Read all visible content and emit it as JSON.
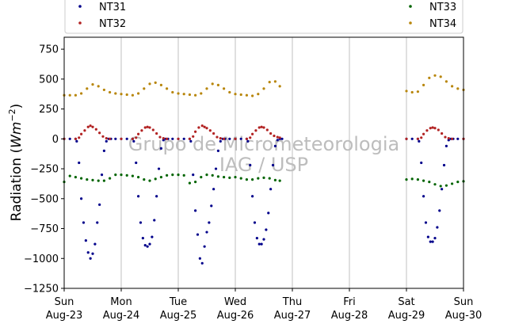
{
  "chart_data": {
    "type": "scatter",
    "title": "",
    "xlabel": "",
    "ylabel_main": "Radiation (",
    "ylabel_unit_base": "Wm",
    "ylabel_unit_exp": "−2",
    "ylabel_close": ")",
    "ylim": [
      -1250,
      850
    ],
    "xlim_days": [
      0,
      7
    ],
    "yticks": [
      {
        "v": 750,
        "label": "750"
      },
      {
        "v": 500,
        "label": "500"
      },
      {
        "v": 250,
        "label": "250"
      },
      {
        "v": 0,
        "label": "0"
      },
      {
        "v": -250,
        "label": "−250"
      },
      {
        "v": -500,
        "label": "−500"
      },
      {
        "v": -750,
        "label": "−750"
      },
      {
        "v": -1000,
        "label": "−1000"
      },
      {
        "v": -1250,
        "label": "−1250"
      }
    ],
    "xticks": [
      {
        "d": 0,
        "day": "Sun",
        "date": "Aug-23"
      },
      {
        "d": 1,
        "day": "Mon",
        "date": "Aug-24"
      },
      {
        "d": 2,
        "day": "Tue",
        "date": "Aug-25"
      },
      {
        "d": 3,
        "day": "Wed",
        "date": "Aug-26"
      },
      {
        "d": 4,
        "day": "Thu",
        "date": "Aug-27"
      },
      {
        "d": 5,
        "day": "Fri",
        "date": "Aug-28"
      },
      {
        "d": 6,
        "day": "Sat",
        "date": "Aug-29"
      },
      {
        "d": 7,
        "day": "Sun",
        "date": "Aug-30"
      }
    ],
    "grid": "vertical",
    "legend_placement": "top",
    "watermark": [
      "Grupo de Micrometeorologia",
      "IAG / USP"
    ],
    "series": [
      {
        "name": "NT31",
        "color": "#00008b",
        "x": [
          0.0,
          0.1,
          0.2,
          0.22,
          0.26,
          0.3,
          0.34,
          0.38,
          0.42,
          0.46,
          0.5,
          0.54,
          0.58,
          0.62,
          0.66,
          0.7,
          0.74,
          0.78,
          0.82,
          0.9,
          1.0,
          1.1,
          1.2,
          1.22,
          1.26,
          1.3,
          1.34,
          1.38,
          1.42,
          1.46,
          1.5,
          1.54,
          1.58,
          1.62,
          1.66,
          1.7,
          1.74,
          1.78,
          1.82,
          1.9,
          2.0,
          2.1,
          2.2,
          2.22,
          2.26,
          2.3,
          2.34,
          2.38,
          2.42,
          2.46,
          2.5,
          2.54,
          2.58,
          2.62,
          2.66,
          2.7,
          2.74,
          2.78,
          2.82,
          2.9,
          3.0,
          3.1,
          3.2,
          3.22,
          3.26,
          3.3,
          3.34,
          3.38,
          3.42,
          3.46,
          3.5,
          3.54,
          3.58,
          3.62,
          3.66,
          3.7,
          3.74,
          3.78,
          3.82,
          6.0,
          6.1,
          6.2,
          6.22,
          6.26,
          6.3,
          6.34,
          6.38,
          6.42,
          6.46,
          6.5,
          6.54,
          6.58,
          6.62,
          6.66,
          6.7,
          6.74,
          6.78,
          6.82,
          6.9,
          7.0
        ],
        "y": [
          0,
          0,
          0,
          -20,
          -200,
          -500,
          -700,
          -850,
          -950,
          -1000,
          -960,
          -880,
          -700,
          -550,
          -300,
          -100,
          -20,
          0,
          0,
          0,
          0,
          0,
          0,
          -20,
          -200,
          -480,
          -700,
          -830,
          -890,
          -900,
          -880,
          -820,
          -680,
          -480,
          -250,
          -80,
          -10,
          0,
          0,
          0,
          0,
          0,
          0,
          -20,
          -300,
          -600,
          -800,
          -1000,
          -1040,
          -900,
          -780,
          -700,
          -560,
          -420,
          -250,
          -100,
          -20,
          0,
          0,
          0,
          0,
          0,
          0,
          -20,
          -220,
          -480,
          -700,
          -830,
          -880,
          -880,
          -840,
          -760,
          -620,
          -420,
          -220,
          -60,
          -10,
          0,
          0,
          0,
          0,
          0,
          -20,
          -200,
          -480,
          -700,
          -820,
          -860,
          -860,
          -830,
          -740,
          -600,
          -420,
          -220,
          -60,
          -10,
          0,
          0,
          0,
          0
        ]
      },
      {
        "name": "NT32",
        "color": "#b22222",
        "x": [
          0.0,
          0.2,
          0.26,
          0.3,
          0.36,
          0.42,
          0.46,
          0.5,
          0.56,
          0.62,
          0.68,
          0.74,
          0.8,
          1.0,
          1.2,
          1.26,
          1.3,
          1.36,
          1.42,
          1.46,
          1.5,
          1.56,
          1.62,
          1.68,
          1.74,
          1.8,
          2.0,
          2.2,
          2.26,
          2.3,
          2.36,
          2.42,
          2.46,
          2.5,
          2.56,
          2.62,
          2.68,
          2.74,
          2.8,
          3.0,
          3.2,
          3.26,
          3.3,
          3.36,
          3.42,
          3.46,
          3.5,
          3.56,
          3.62,
          3.68,
          3.74,
          3.78,
          6.0,
          6.2,
          6.26,
          6.3,
          6.36,
          6.42,
          6.46,
          6.5,
          6.56,
          6.62,
          6.68,
          6.74,
          6.8,
          7.0
        ],
        "y": [
          0,
          0,
          10,
          40,
          70,
          100,
          110,
          100,
          80,
          50,
          20,
          5,
          0,
          0,
          0,
          10,
          40,
          70,
          95,
          100,
          95,
          75,
          45,
          15,
          5,
          0,
          0,
          0,
          20,
          60,
          95,
          110,
          100,
          90,
          70,
          45,
          15,
          5,
          0,
          0,
          0,
          10,
          40,
          70,
          95,
          100,
          95,
          75,
          45,
          25,
          15,
          10,
          0,
          0,
          10,
          40,
          70,
          90,
          95,
          90,
          75,
          45,
          15,
          5,
          0,
          0
        ]
      },
      {
        "name": "NT33",
        "color": "#006400",
        "x": [
          0.0,
          0.1,
          0.2,
          0.3,
          0.4,
          0.5,
          0.6,
          0.7,
          0.8,
          0.9,
          1.0,
          1.1,
          1.2,
          1.3,
          1.4,
          1.5,
          1.6,
          1.7,
          1.8,
          1.9,
          2.0,
          2.1,
          2.2,
          2.3,
          2.4,
          2.5,
          2.6,
          2.7,
          2.8,
          2.9,
          3.0,
          3.1,
          3.2,
          3.3,
          3.4,
          3.5,
          3.6,
          3.7,
          3.78,
          6.0,
          6.1,
          6.2,
          6.3,
          6.4,
          6.5,
          6.6,
          6.7,
          6.8,
          6.9,
          7.0
        ],
        "y": [
          -360,
          -310,
          -320,
          -330,
          -340,
          -345,
          -350,
          -350,
          -330,
          -300,
          -300,
          -305,
          -310,
          -320,
          -340,
          -350,
          -335,
          -320,
          -305,
          -300,
          -300,
          -305,
          -370,
          -360,
          -320,
          -300,
          -305,
          -315,
          -320,
          -325,
          -320,
          -330,
          -340,
          -340,
          -330,
          -325,
          -330,
          -345,
          -350,
          -340,
          -335,
          -340,
          -350,
          -360,
          -380,
          -395,
          -390,
          -375,
          -360,
          -355
        ]
      },
      {
        "name": "NT34",
        "color": "#b8860b",
        "x": [
          0.0,
          0.1,
          0.2,
          0.3,
          0.4,
          0.5,
          0.6,
          0.7,
          0.8,
          0.9,
          1.0,
          1.1,
          1.2,
          1.3,
          1.4,
          1.5,
          1.6,
          1.7,
          1.8,
          1.9,
          2.0,
          2.1,
          2.2,
          2.3,
          2.4,
          2.5,
          2.6,
          2.7,
          2.8,
          2.9,
          3.0,
          3.1,
          3.2,
          3.3,
          3.4,
          3.5,
          3.6,
          3.7,
          3.78,
          6.0,
          6.1,
          6.2,
          6.3,
          6.4,
          6.5,
          6.6,
          6.7,
          6.8,
          6.9,
          7.0
        ],
        "y": [
          365,
          365,
          365,
          380,
          420,
          455,
          440,
          410,
          390,
          380,
          375,
          370,
          365,
          380,
          420,
          460,
          470,
          450,
          420,
          390,
          380,
          375,
          370,
          365,
          380,
          420,
          460,
          450,
          420,
          390,
          375,
          370,
          365,
          360,
          375,
          420,
          475,
          480,
          440,
          400,
          390,
          395,
          450,
          510,
          530,
          520,
          480,
          440,
          420,
          410
        ]
      }
    ]
  }
}
